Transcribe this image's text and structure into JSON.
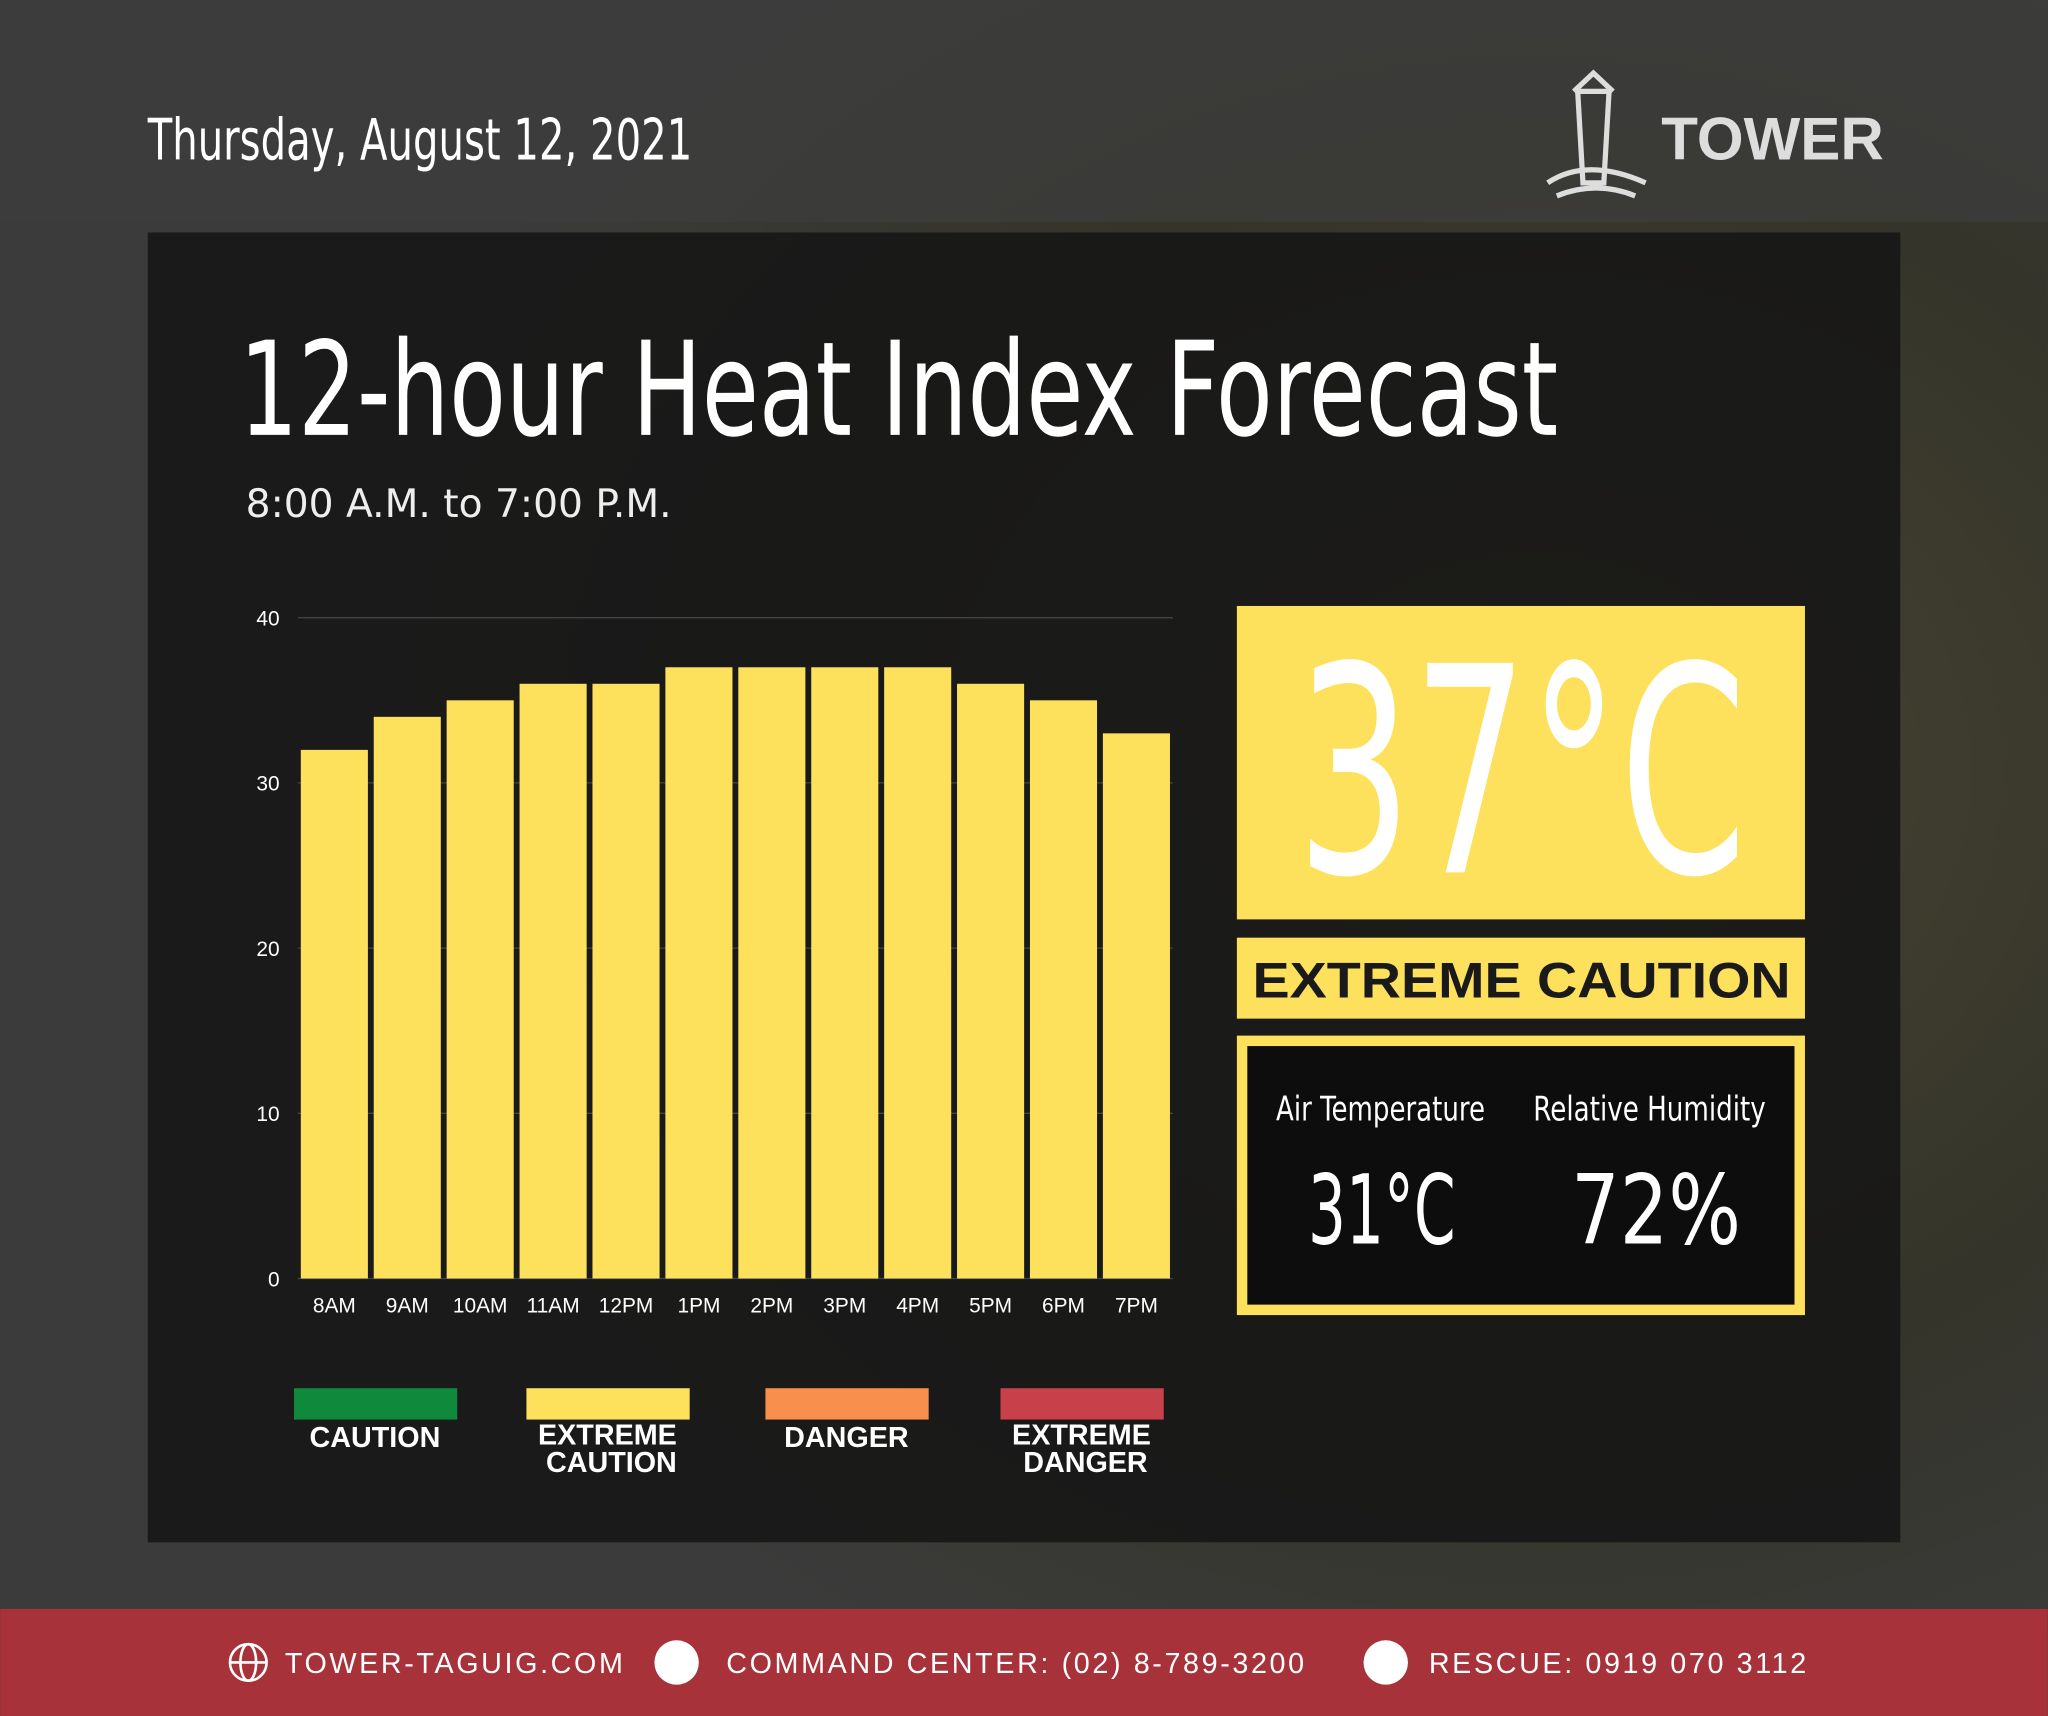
{
  "header": {
    "date": "Thursday, August 12, 2021",
    "brand": "TOWER"
  },
  "chart_data": {
    "type": "bar",
    "title": "12-hour Heat Index Forecast",
    "subtitle": "8:00 A.M. to 7:00 P.M.",
    "categories": [
      "8AM",
      "9AM",
      "10AM",
      "11AM",
      "12PM",
      "1PM",
      "2PM",
      "3PM",
      "4PM",
      "5PM",
      "6PM",
      "7PM"
    ],
    "values": [
      32,
      34,
      35,
      36,
      36,
      37,
      37,
      37,
      37,
      36,
      35,
      33
    ],
    "color": "#fde15c",
    "ylim": [
      0,
      40
    ],
    "yticks": [
      0,
      10,
      20,
      30,
      40
    ],
    "grid": true,
    "legend": [
      {
        "label": "CAUTION",
        "color": "#0f8a3c"
      },
      {
        "label": "EXTREME CAUTION",
        "color": "#fde15c"
      },
      {
        "label": "DANGER",
        "color": "#f98f4d"
      },
      {
        "label": "EXTREME DANGER",
        "color": "#c8404a"
      }
    ]
  },
  "summary": {
    "heat_index": "37°C",
    "status": "EXTREME CAUTION",
    "air_temperature": {
      "label": "Air Temperature",
      "value": "31°C"
    },
    "relative_humidity": {
      "label": "Relative Humidity",
      "value": "72%"
    }
  },
  "footer": {
    "website": "TOWER-TAGUIG.COM",
    "command_center": "COMMAND CENTER: (02) 8-789-3200",
    "rescue": "RESCUE: 0919 070 3112"
  }
}
